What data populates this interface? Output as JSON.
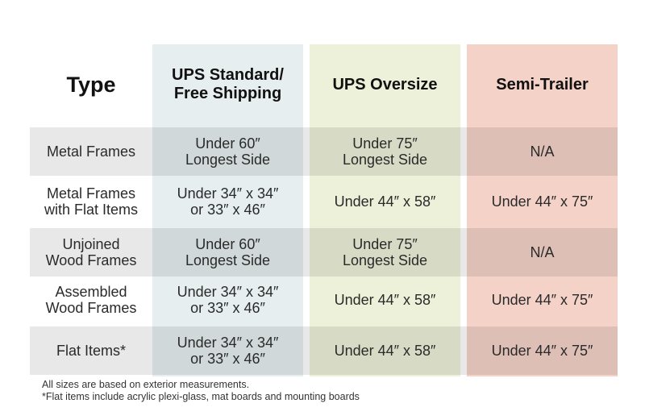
{
  "header": {
    "type": "Type",
    "ups_standard_l1": "UPS Standard/",
    "ups_standard_l2": "Free Shipping",
    "ups_oversize": "UPS Oversize",
    "semi_trailer": "Semi-Trailer"
  },
  "rows": [
    {
      "type": [
        "Metal Frames"
      ],
      "ups_standard": [
        "Under 60″",
        "Longest Side"
      ],
      "ups_oversize": [
        "Under 75″",
        "Longest Side"
      ],
      "semi_trailer": [
        "N/A"
      ]
    },
    {
      "type": [
        "Metal Frames",
        "with Flat Items"
      ],
      "ups_standard": [
        "Under 34″ x 34″",
        "or 33″ x 46″"
      ],
      "ups_oversize": [
        "Under 44″ x 58″"
      ],
      "semi_trailer": [
        "Under 44″ x 75″"
      ]
    },
    {
      "type": [
        "Unjoined",
        "Wood Frames"
      ],
      "ups_standard": [
        "Under 60″",
        "Longest Side"
      ],
      "ups_oversize": [
        "Under 75″",
        "Longest Side"
      ],
      "semi_trailer": [
        "N/A"
      ]
    },
    {
      "type": [
        "Assembled",
        "Wood Frames"
      ],
      "ups_standard": [
        "Under 34″ x 34″",
        "or 33″ x 46″"
      ],
      "ups_oversize": [
        "Under 44″ x 58″"
      ],
      "semi_trailer": [
        "Under 44″ x 75″"
      ]
    },
    {
      "type": [
        "Flat Items*"
      ],
      "ups_standard": [
        "Under 34″ x 34″",
        "or 33″ x 46″"
      ],
      "ups_oversize": [
        "Under 44″ x 58″"
      ],
      "semi_trailer": [
        "Under 44″ x 75″"
      ]
    }
  ],
  "footnotes": {
    "note1": "All sizes are based on exterior measurements.",
    "note2": "*Flat items include acrylic plexi-glass, mat boards and mounting boards"
  }
}
